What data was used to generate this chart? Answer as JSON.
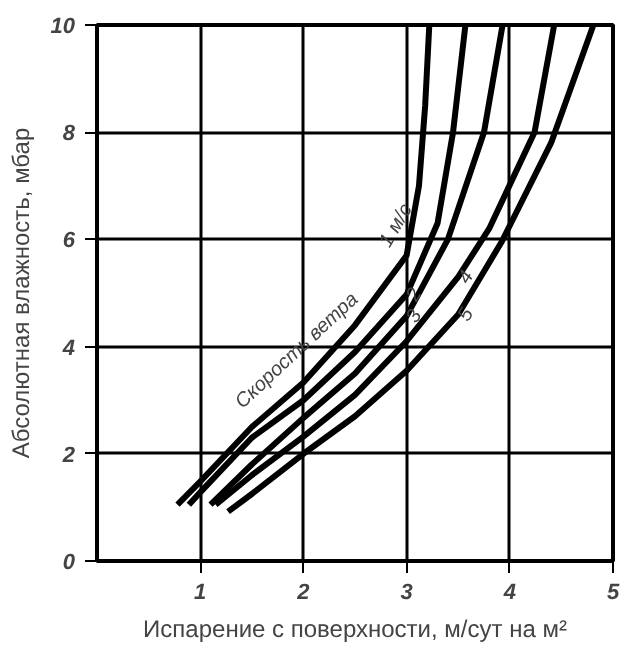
{
  "chart_data": {
    "type": "line",
    "xlabel": "Испарение с поверхности, м/сут на м²",
    "ylabel": "Абсолютная влажность, мбар",
    "annotations": [
      "Скорость ветра"
    ],
    "xlim": [
      0,
      5
    ],
    "ylim": [
      0,
      10
    ],
    "xticks": [
      1,
      2,
      3,
      4,
      5
    ],
    "yticks": [
      0,
      2,
      4,
      6,
      8,
      10
    ],
    "grid": true,
    "marker": "none",
    "line_style": "solid",
    "series": [
      {
        "name": "1 м/с",
        "color": "#000000",
        "x": [
          0.78,
          1,
          1.5,
          2,
          2.5,
          3.0,
          3.12,
          3.18,
          3.22
        ],
        "values": [
          1.05,
          1.48,
          2.5,
          3.33,
          4.4,
          5.7,
          7,
          8.5,
          10
        ]
      },
      {
        "name": "2",
        "color": "#000000",
        "x": [
          0.89,
          1,
          1.5,
          2,
          2.5,
          3,
          3.3,
          3.45,
          3.57
        ],
        "values": [
          1.05,
          1.28,
          2.3,
          3.0,
          3.9,
          4.97,
          6.3,
          8,
          10
        ]
      },
      {
        "name": "3",
        "color": "#000000",
        "x": [
          1.1,
          1.5,
          2,
          2.5,
          3,
          3.4,
          3.75,
          3.93
        ],
        "values": [
          1.05,
          1.8,
          2.67,
          3.5,
          4.57,
          6,
          8,
          10
        ]
      },
      {
        "name": "4",
        "color": "#000000",
        "x": [
          1.15,
          1.5,
          2,
          2.5,
          3,
          3.5,
          3.8,
          4.24,
          4.43
        ],
        "values": [
          1.05,
          1.6,
          2.32,
          3.1,
          4.1,
          5.3,
          6.2,
          8,
          10
        ]
      },
      {
        "name": "5",
        "color": "#000000",
        "x": [
          1.27,
          1.5,
          2,
          2.5,
          3,
          3.5,
          3.92,
          4.4,
          4.81
        ],
        "values": [
          0.92,
          1.25,
          2.0,
          2.7,
          3.55,
          4.6,
          5.95,
          7.8,
          10
        ]
      }
    ]
  }
}
